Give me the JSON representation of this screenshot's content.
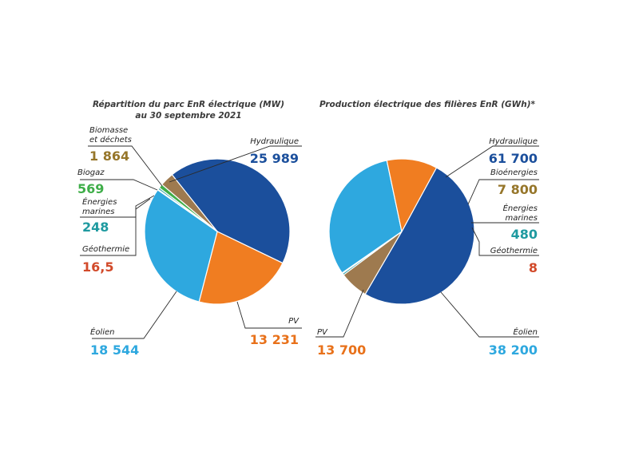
{
  "chart_data": [
    {
      "type": "pie",
      "title": "Répartition du parc EnR électrique (MW)",
      "subtitle": "au 30 septembre 2021",
      "slices": [
        {
          "label": "Hydraulique",
          "value_text": "25 989",
          "value": 25989,
          "color": "#1b4f9c"
        },
        {
          "label": "PV",
          "value_text": "13 231",
          "value": 13231,
          "color": "#f07d21"
        },
        {
          "label": "Éolien",
          "value_text": "18 544",
          "value": 18544,
          "color": "#2ea8df"
        },
        {
          "label": "Géothermie",
          "value_text": "16,5",
          "value": 16.5,
          "color": "#d24a2a"
        },
        {
          "label": "Énergies marines",
          "value_text": "248",
          "value": 248,
          "color": "#1f9aa0"
        },
        {
          "label": "Biogaz",
          "value_text": "569",
          "value": 569,
          "color": "#3fae49"
        },
        {
          "label": "Biomasse et déchets",
          "value_text": "1 864",
          "value": 1864,
          "color": "#9e7a4f"
        }
      ],
      "value_colors": {
        "Hydraulique": "#1b4f9c",
        "PV": "#e8711a",
        "Éolien": "#2ea8df",
        "Géothermie": "#d24a2a",
        "Énergies marines": "#1f9aa0",
        "Biogaz": "#3fae49",
        "Biomasse et déchets": "#96762a"
      }
    },
    {
      "type": "pie",
      "title": "Production électrique des filières EnR (GWh)*",
      "slices": [
        {
          "label": "Hydraulique",
          "value_text": "61 700",
          "value": 61700,
          "color": "#1b4f9c"
        },
        {
          "label": "Bioénergies",
          "value_text": "7 800",
          "value": 7800,
          "color": "#9e7a4f"
        },
        {
          "label": "Énergies marines",
          "value_text": "480",
          "value": 480,
          "color": "#1f9aa0"
        },
        {
          "label": "Géothermie",
          "value_text": "8",
          "value": 8,
          "color": "#d24a2a"
        },
        {
          "label": "Éolien",
          "value_text": "38 200",
          "value": 38200,
          "color": "#2ea8df"
        },
        {
          "label": "PV",
          "value_text": "13 700",
          "value": 13700,
          "color": "#f07d21"
        }
      ],
      "value_colors": {
        "Hydraulique": "#1b4f9c",
        "Bioénergies": "#96762a",
        "Énergies marines": "#1f9aa0",
        "Géothermie": "#d24a2a",
        "Éolien": "#2ea8df",
        "PV": "#e8711a"
      }
    }
  ]
}
